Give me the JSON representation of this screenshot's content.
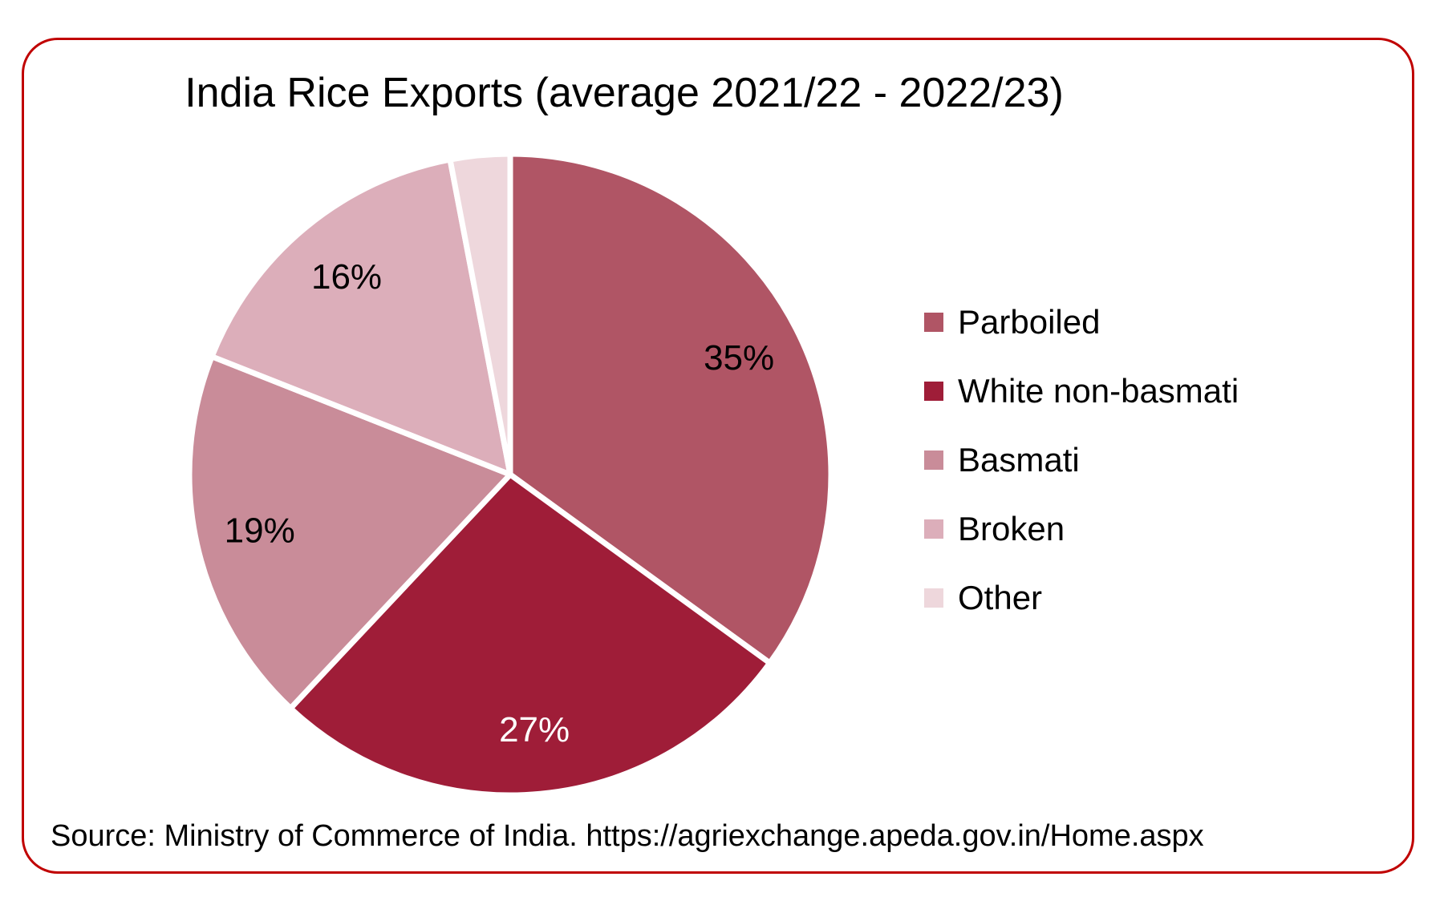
{
  "frame": {
    "border_color": "#C00000"
  },
  "chart_data": {
    "type": "pie",
    "title": "India Rice Exports (average 2021/22 - 2022/23)",
    "categories": [
      "Parboiled",
      "White non-basmati",
      "Basmati",
      "Broken",
      "Other"
    ],
    "values": [
      35,
      27,
      19,
      16,
      3
    ],
    "slice_labels": [
      "35%",
      "27%",
      "19%",
      "16%",
      ""
    ],
    "colors": [
      "#B05565",
      "#9F1D38",
      "#C98C99",
      "#DCAEBA",
      "#EED7DC"
    ],
    "slice_label_colors": [
      "#000000",
      "#FFFFFF",
      "#000000",
      "#000000",
      ""
    ],
    "start_angle_deg": 0,
    "direction": "clockwise",
    "separator_color": "#FFFFFF",
    "legend_position": "right",
    "source": "Source: Ministry of Commerce of India. https://agriexchange.apeda.gov.in/Home.aspx"
  }
}
